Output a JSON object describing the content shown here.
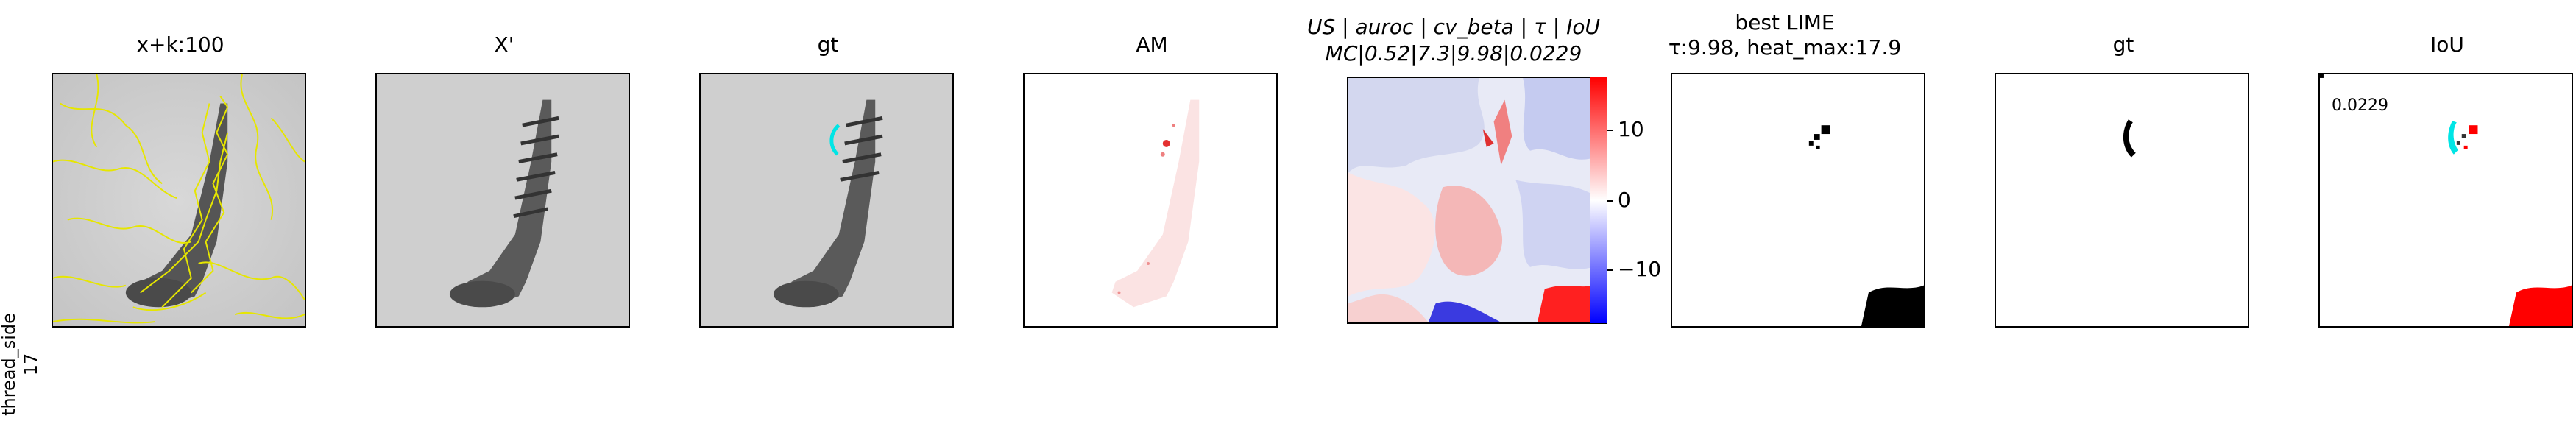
{
  "row_label": {
    "line1": "thread_side",
    "line2": "17"
  },
  "panels": [
    {
      "title": "x+k:100"
    },
    {
      "title": "X'"
    },
    {
      "title": "gt"
    },
    {
      "title": "AM"
    },
    {
      "title_line1": "US | auroc | cv_beta | τ | IoU",
      "title_line2": "MC|0.52|7.3|9.98|0.0229"
    },
    {
      "title_line1": "best LIME",
      "title_line2": "τ:9.98, heat_max:17.9"
    },
    {
      "title": "gt"
    },
    {
      "title": "IoU",
      "value_text": "0.0229"
    }
  ],
  "colorbar": {
    "ticks": [
      "10",
      "0",
      "−10"
    ],
    "max_color": "#ff0000",
    "min_color": "#0000ff"
  }
}
